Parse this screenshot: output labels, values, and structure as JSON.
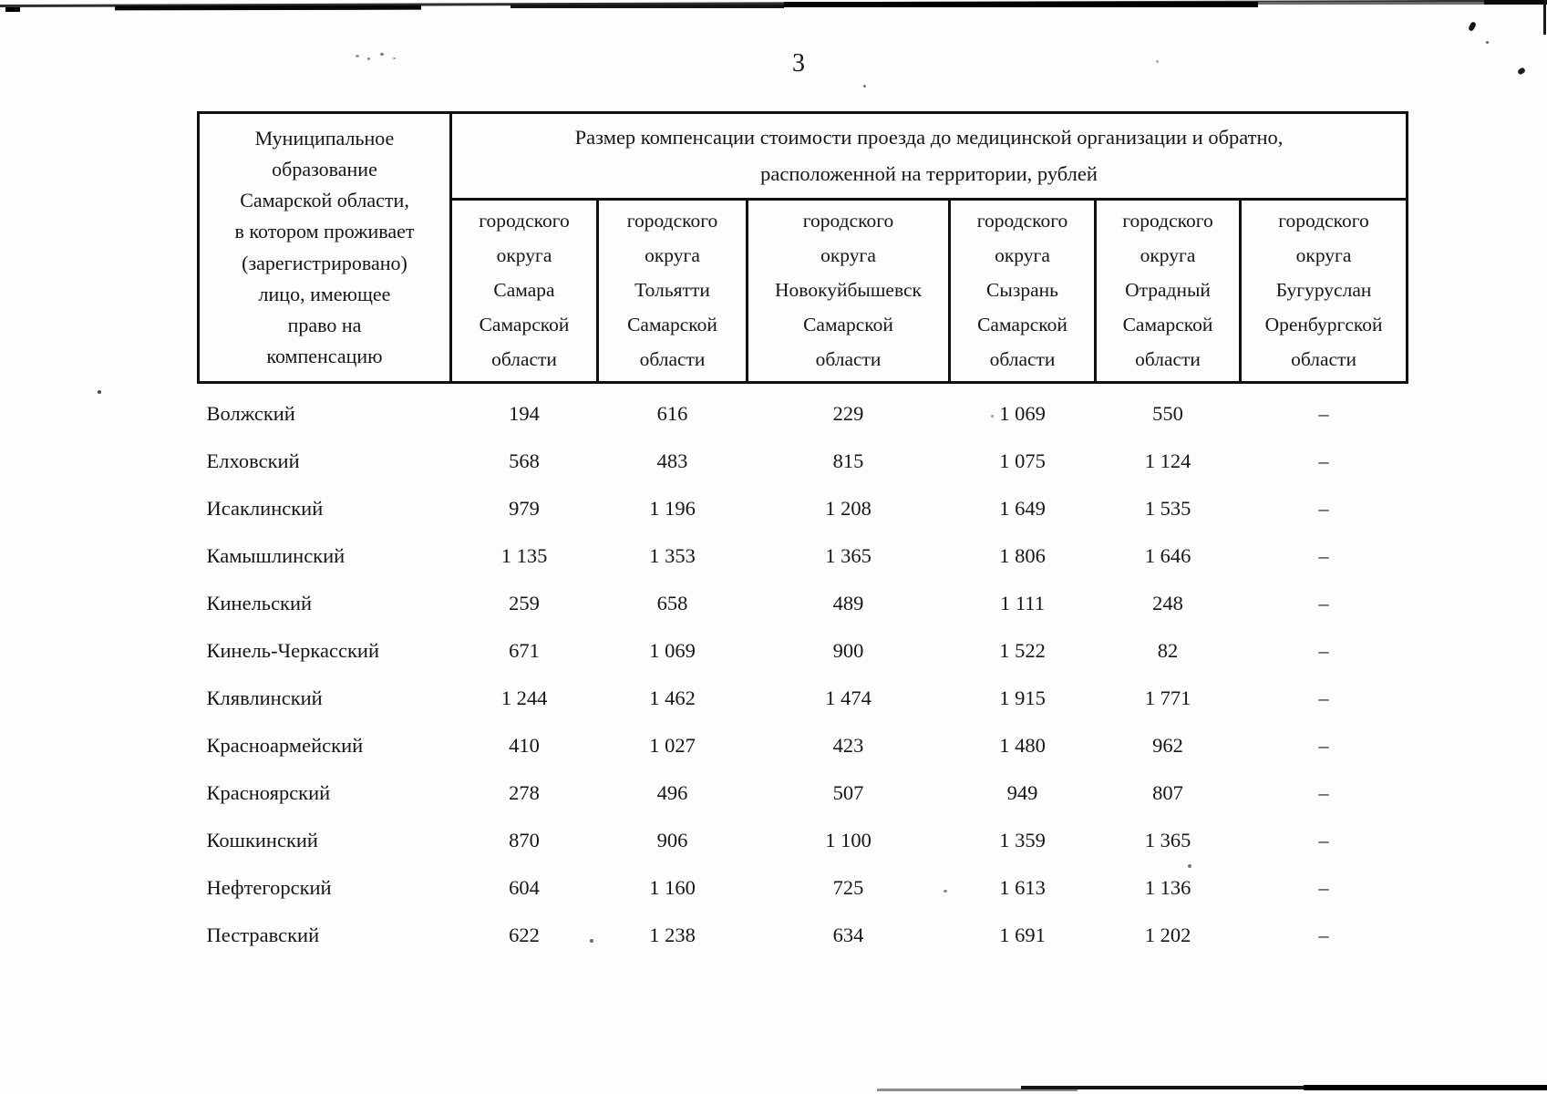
{
  "page": {
    "number": "3"
  },
  "table": {
    "corner_header": "Муниципальное\nобразование\nСамарской области,\nв котором проживает\n(зарегистрировано)\nлицо, имеющее\nправо на\nкомпенсацию",
    "spanning_header": "Размер компенсации стоимости проезда до медицинской организации и обратно,\nрасположенной на территории, рублей",
    "column_headers": [
      "городского\nокруга\nСамара\nСамарской\nобласти",
      "городского\nокруга\nТольятти\nСамарской\nобласти",
      "городского\nокруга\nНовокуйбышевск\nСамарской\nобласти",
      "городского\nокруга\nСызрань\nСамарской\nобласти",
      "городского\nокруга\nОтрадный\nСамарской\nобласти",
      "городского\nокруга\nБугуруслан\nОренбургской\nобласти"
    ],
    "rows": [
      {
        "name": "Волжский",
        "values": [
          "194",
          "616",
          "229",
          "1 069",
          "550",
          "–"
        ]
      },
      {
        "name": "Елховский",
        "values": [
          "568",
          "483",
          "815",
          "1 075",
          "1 124",
          "–"
        ]
      },
      {
        "name": "Исаклинский",
        "values": [
          "979",
          "1 196",
          "1 208",
          "1 649",
          "1 535",
          "–"
        ]
      },
      {
        "name": "Камышлинский",
        "values": [
          "1 135",
          "1 353",
          "1 365",
          "1 806",
          "1 646",
          "–"
        ]
      },
      {
        "name": "Кинельский",
        "values": [
          "259",
          "658",
          "489",
          "1 111",
          "248",
          "–"
        ]
      },
      {
        "name": "Кинель-Черкасский",
        "values": [
          "671",
          "1 069",
          "900",
          "1 522",
          "82",
          "–"
        ]
      },
      {
        "name": "Клявлинский",
        "values": [
          "1 244",
          "1 462",
          "1 474",
          "1 915",
          "1 771",
          "–"
        ]
      },
      {
        "name": "Красноармейский",
        "values": [
          "410",
          "1 027",
          "423",
          "1 480",
          "962",
          "–"
        ]
      },
      {
        "name": "Красноярский",
        "values": [
          "278",
          "496",
          "507",
          "949",
          "807",
          "–"
        ]
      },
      {
        "name": "Кошкинский",
        "values": [
          "870",
          "906",
          "1 100",
          "1 359",
          "1 365",
          "–"
        ]
      },
      {
        "name": "Нефтегорский",
        "values": [
          "604",
          "1 160",
          "725",
          "1 613",
          "1 136",
          "–"
        ]
      },
      {
        "name": "Пестравский",
        "values": [
          "622",
          "1 238",
          "634",
          "1 691",
          "1 202",
          "–"
        ]
      }
    ]
  }
}
